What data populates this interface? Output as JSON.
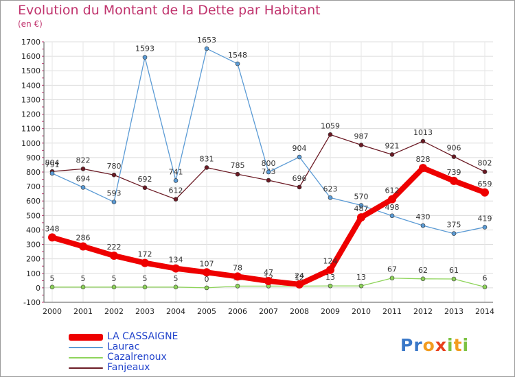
{
  "title": "Evolution du Montant de la Dette par Habitant",
  "unit_label": "(en €)",
  "logo": {
    "letters": [
      {
        "ch": "P",
        "color": "#3a78c8"
      },
      {
        "ch": "r",
        "color": "#3a78c8"
      },
      {
        "ch": "o",
        "color": "#f39c1f"
      },
      {
        "ch": "x",
        "color": "#e8401c"
      },
      {
        "ch": "i",
        "color": "#7cc242"
      },
      {
        "ch": "t",
        "color": "#f39c1f"
      },
      {
        "ch": "i",
        "color": "#7cc242"
      }
    ]
  },
  "chart_data": {
    "type": "line",
    "title": "Evolution du Montant de la Dette par Habitant",
    "ylabel": "(en €)",
    "xlabel": "",
    "ylim": [
      -100,
      1700
    ],
    "yticks": [
      -100,
      0,
      100,
      200,
      300,
      400,
      500,
      600,
      700,
      800,
      900,
      1000,
      1100,
      1200,
      1300,
      1400,
      1500,
      1600,
      1700
    ],
    "grid": true,
    "legend_position": "bottom-left",
    "x": [
      "2000",
      "2001",
      "2002",
      "2003",
      "2004",
      "2005",
      "2006",
      "2007",
      "2008",
      "2009",
      "2010",
      "2011",
      "2012",
      "2013",
      "2014"
    ],
    "series": [
      {
        "name": "Fanjeaux",
        "color": "#6b1a24",
        "values": [
          804,
          822,
          780,
          692,
          612,
          831,
          785,
          743,
          696,
          1059,
          987,
          921,
          1013,
          906,
          802
        ],
        "labels": [
          "804",
          "822",
          "780",
          "692",
          "612",
          "831",
          "785",
          "743",
          "696",
          "1059",
          "987",
          "921",
          "1013",
          "906",
          "802"
        ]
      },
      {
        "name": "Laurac",
        "color": "#5b9bd5",
        "values": [
          791,
          694,
          593,
          1593,
          741,
          1653,
          1548,
          800,
          904,
          623,
          570,
          498,
          430,
          375,
          419
        ],
        "labels": [
          "791",
          "694",
          "593",
          "1593",
          "741",
          "1653",
          "1548",
          "800",
          "904",
          "623",
          "570",
          "498",
          "430",
          "375",
          "419"
        ]
      },
      {
        "name": "Cazalrenoux",
        "color": "#8ed45a",
        "values": [
          5,
          5,
          5,
          5,
          5,
          0,
          12,
          12,
          12,
          13,
          13,
          67,
          62,
          61,
          6
        ],
        "labels": [
          "5",
          "5",
          "5",
          "5",
          "5",
          "0",
          "12",
          "12",
          "12",
          "13",
          "13",
          "67",
          "62",
          "61",
          "6"
        ]
      },
      {
        "name": "LA CASSAIGNE",
        "color": "#ee0000",
        "values": [
          348,
          286,
          222,
          172,
          134,
          107,
          78,
          47,
          24,
          124,
          487,
          612,
          828,
          739,
          659
        ],
        "labels": [
          "348",
          "286",
          "222",
          "172",
          "134",
          "107",
          "78",
          "47",
          "24",
          "124",
          "487",
          "612",
          "828",
          "739",
          "659"
        ]
      }
    ]
  },
  "legend": [
    {
      "label": "LA CASSAIGNE",
      "color": "#ee0000"
    },
    {
      "label": "Laurac",
      "color": "#5b9bd5"
    },
    {
      "label": "Cazalrenoux",
      "color": "#8ed45a"
    },
    {
      "label": "Fanjeaux",
      "color": "#6b1a24"
    }
  ]
}
